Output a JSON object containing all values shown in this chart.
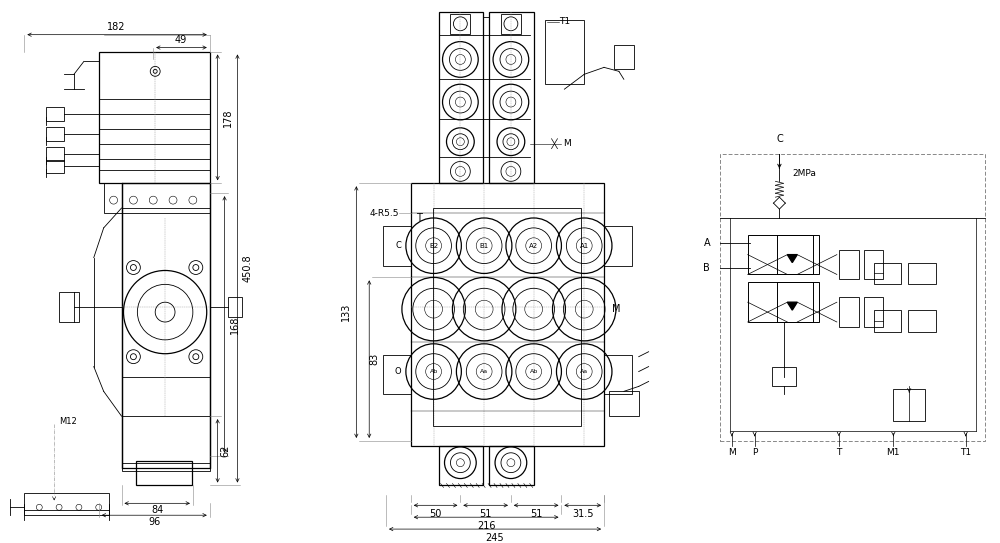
{
  "bg_color": "#ffffff",
  "lc": "#000000",
  "gray": "#666666",
  "left_dims": {
    "dim_182": "182",
    "dim_49": "49",
    "dim_178": "178",
    "dim_168": "168",
    "dim_4508": "450.8",
    "dim_62": "62",
    "dim_M12": "M12",
    "dim_84": "84",
    "dim_96": "96"
  },
  "center_dims": {
    "dim_4R55": "4-R5.5",
    "dim_T": "T",
    "dim_M": "M",
    "dim_133": "133",
    "dim_83": "83",
    "dim_50": "50",
    "dim_51a": "51",
    "dim_51b": "51",
    "dim_315": "31.5",
    "dim_216": "216",
    "dim_245": "245",
    "label_T1": "T1",
    "label_M": "M",
    "label_C": "C",
    "label_O": "O",
    "label_B2": "B2",
    "label_B1": "B1",
    "label_A2": "A2",
    "label_A1": "A1",
    "label_Ab": "Ab",
    "label_Aa": "Aa"
  },
  "right_labels": {
    "C": "C",
    "2MPa": "2MPa",
    "A": "A",
    "B": "B",
    "M": "M",
    "P": "P",
    "T": "T",
    "M1": "M1",
    "T1": "T1"
  }
}
